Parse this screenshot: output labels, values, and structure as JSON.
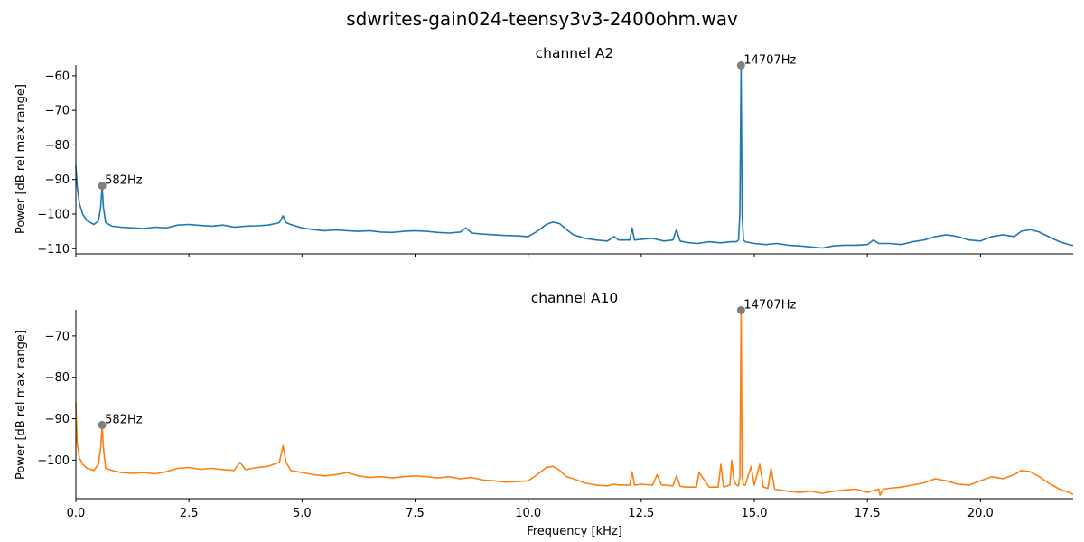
{
  "figure": {
    "title": "sdwrites-gain024-teensy3v3-2400ohm.wav"
  },
  "chart_data": [
    {
      "type": "line",
      "title": "channel A2",
      "xlabel": "",
      "ylabel": "Power [dB rel max range]",
      "xlim": [
        0,
        22.05
      ],
      "ylim": [
        -111.5,
        -56.9
      ],
      "xticks": [
        0.0,
        2.5,
        5.0,
        7.5,
        10.0,
        12.5,
        15.0,
        17.5,
        20.0
      ],
      "xtick_labels_visible": false,
      "yticks": [
        -110,
        -100,
        -90,
        -80,
        -70,
        -60
      ],
      "series": [
        {
          "color": "#1f77b4",
          "x": [
            0.0,
            0.03,
            0.08,
            0.15,
            0.25,
            0.4,
            0.5,
            0.55,
            0.582,
            0.61,
            0.66,
            0.8,
            1.0,
            1.25,
            1.5,
            1.75,
            2.0,
            2.25,
            2.5,
            2.75,
            3.0,
            3.25,
            3.5,
            3.75,
            4.0,
            4.25,
            4.5,
            4.58,
            4.65,
            4.75,
            5.0,
            5.25,
            5.5,
            5.75,
            6.0,
            6.25,
            6.5,
            6.75,
            7.0,
            7.25,
            7.5,
            7.75,
            8.0,
            8.25,
            8.5,
            8.62,
            8.75,
            9.0,
            9.25,
            9.5,
            9.75,
            10.0,
            10.2,
            10.4,
            10.55,
            10.7,
            10.85,
            11.0,
            11.25,
            11.5,
            11.75,
            11.9,
            12.0,
            12.25,
            12.3,
            12.35,
            12.5,
            12.75,
            13.0,
            13.2,
            13.28,
            13.36,
            13.5,
            13.75,
            14.0,
            14.25,
            14.5,
            14.6,
            14.65,
            14.68,
            14.707,
            14.73,
            14.76,
            14.8,
            15.0,
            15.25,
            15.5,
            15.75,
            16.0,
            16.25,
            16.5,
            16.75,
            17.0,
            17.25,
            17.5,
            17.63,
            17.75,
            18.0,
            18.25,
            18.5,
            18.75,
            19.0,
            19.25,
            19.5,
            19.75,
            20.0,
            20.25,
            20.5,
            20.75,
            20.9,
            21.1,
            21.3,
            21.5,
            21.75,
            22.0,
            22.05
          ],
          "y": [
            -86.0,
            -92.0,
            -97.0,
            -100.0,
            -102.0,
            -103.0,
            -102.0,
            -98.0,
            -91.8,
            -98.0,
            -102.5,
            -103.5,
            -103.8,
            -104.0,
            -104.2,
            -103.8,
            -104.0,
            -103.2,
            -103.0,
            -103.3,
            -103.5,
            -103.2,
            -103.8,
            -103.5,
            -103.4,
            -103.2,
            -102.5,
            -100.5,
            -102.5,
            -103.0,
            -104.0,
            -104.5,
            -104.8,
            -104.6,
            -104.8,
            -105.0,
            -104.8,
            -105.2,
            -105.3,
            -105.0,
            -104.8,
            -105.0,
            -105.3,
            -105.5,
            -105.2,
            -104.0,
            -105.5,
            -105.8,
            -106.0,
            -106.2,
            -106.3,
            -106.5,
            -105.0,
            -103.0,
            -102.3,
            -102.8,
            -104.5,
            -106.0,
            -107.0,
            -107.5,
            -107.8,
            -106.5,
            -107.5,
            -107.5,
            -104.0,
            -107.5,
            -107.3,
            -107.0,
            -107.8,
            -107.5,
            -104.5,
            -107.8,
            -108.2,
            -108.5,
            -108.0,
            -108.3,
            -108.0,
            -108.0,
            -107.5,
            -100.0,
            -57.0,
            -100.0,
            -107.5,
            -108.0,
            -108.5,
            -108.8,
            -108.5,
            -109.0,
            -109.2,
            -109.5,
            -109.8,
            -109.2,
            -109.0,
            -109.0,
            -108.8,
            -107.5,
            -108.5,
            -108.5,
            -108.8,
            -108.0,
            -107.5,
            -106.5,
            -106.0,
            -106.5,
            -107.5,
            -107.8,
            -106.5,
            -106.0,
            -106.5,
            -105.0,
            -104.5,
            -105.2,
            -106.5,
            -108.0,
            -109.0,
            -109.0
          ]
        }
      ],
      "annotations": [
        {
          "label": "14707Hz",
          "x": 14.707,
          "y": -57.0
        },
        {
          "label": "582Hz",
          "x": 0.582,
          "y": -91.8
        }
      ]
    },
    {
      "type": "line",
      "title": "channel A10",
      "xlabel": "Frequency [kHz]",
      "ylabel": "Power [dB rel max range]",
      "xlim": [
        0,
        22.05
      ],
      "ylim": [
        -109.3,
        -63.7
      ],
      "xticks": [
        0.0,
        2.5,
        5.0,
        7.5,
        10.0,
        12.5,
        15.0,
        17.5,
        20.0
      ],
      "xtick_labels": [
        "0.0",
        "2.5",
        "5.0",
        "7.5",
        "10.0",
        "12.5",
        "15.0",
        "17.5",
        "20.0"
      ],
      "yticks": [
        -100,
        -90,
        -80,
        -70
      ],
      "series": [
        {
          "color": "#ff7f0e",
          "x": [
            0.0,
            0.03,
            0.08,
            0.15,
            0.25,
            0.4,
            0.5,
            0.55,
            0.582,
            0.61,
            0.66,
            0.8,
            1.0,
            1.25,
            1.5,
            1.75,
            2.0,
            2.25,
            2.5,
            2.75,
            3.0,
            3.25,
            3.5,
            3.63,
            3.75,
            4.0,
            4.25,
            4.5,
            4.58,
            4.65,
            4.75,
            5.0,
            5.25,
            5.5,
            5.75,
            6.0,
            6.25,
            6.5,
            6.75,
            7.0,
            7.25,
            7.5,
            7.75,
            8.0,
            8.25,
            8.5,
            8.75,
            9.0,
            9.25,
            9.5,
            9.75,
            10.0,
            10.2,
            10.4,
            10.55,
            10.7,
            10.85,
            11.0,
            11.25,
            11.5,
            11.75,
            11.9,
            12.0,
            12.25,
            12.3,
            12.35,
            12.5,
            12.75,
            12.85,
            12.95,
            13.0,
            13.2,
            13.28,
            13.36,
            13.5,
            13.72,
            13.78,
            14.0,
            14.2,
            14.26,
            14.32,
            14.46,
            14.5,
            14.55,
            14.6,
            14.65,
            14.68,
            14.707,
            14.73,
            14.76,
            14.8,
            14.93,
            15.0,
            15.12,
            15.2,
            15.3,
            15.37,
            15.45,
            15.75,
            16.0,
            16.25,
            16.5,
            16.75,
            17.0,
            17.25,
            17.5,
            17.75,
            17.78,
            17.85,
            18.0,
            18.25,
            18.5,
            18.75,
            19.0,
            19.25,
            19.5,
            19.75,
            20.0,
            20.25,
            20.5,
            20.75,
            20.9,
            21.1,
            21.3,
            21.5,
            21.75,
            22.0,
            22.05
          ],
          "y": [
            -86.0,
            -96.0,
            -99.5,
            -101.0,
            -102.0,
            -102.5,
            -101.0,
            -97.0,
            -91.5,
            -97.0,
            -102.0,
            -102.5,
            -103.0,
            -103.2,
            -103.0,
            -103.3,
            -102.8,
            -102.0,
            -101.8,
            -102.2,
            -102.0,
            -102.3,
            -102.5,
            -100.5,
            -102.3,
            -101.8,
            -101.5,
            -100.5,
            -96.5,
            -100.5,
            -102.5,
            -103.0,
            -103.5,
            -103.8,
            -103.5,
            -103.0,
            -103.8,
            -104.2,
            -104.0,
            -104.3,
            -104.0,
            -103.8,
            -104.0,
            -104.3,
            -104.0,
            -104.5,
            -104.2,
            -104.8,
            -105.0,
            -105.3,
            -105.2,
            -105.0,
            -103.5,
            -101.8,
            -101.5,
            -102.5,
            -104.0,
            -104.5,
            -105.5,
            -106.0,
            -106.2,
            -105.8,
            -106.0,
            -106.0,
            -102.8,
            -106.0,
            -105.8,
            -106.0,
            -103.5,
            -106.0,
            -106.0,
            -106.2,
            -103.8,
            -106.3,
            -106.5,
            -106.5,
            -103.0,
            -106.5,
            -106.5,
            -101.0,
            -106.5,
            -106.0,
            -100.0,
            -105.0,
            -106.0,
            -106.2,
            -104.0,
            -63.8,
            -104.0,
            -106.0,
            -106.0,
            -101.5,
            -106.0,
            -101.0,
            -106.5,
            -106.8,
            -102.0,
            -107.0,
            -107.5,
            -107.8,
            -107.5,
            -108.0,
            -107.5,
            -107.2,
            -107.0,
            -107.8,
            -107.0,
            -108.5,
            -107.0,
            -106.8,
            -106.5,
            -106.0,
            -105.5,
            -104.5,
            -105.0,
            -105.8,
            -106.0,
            -105.0,
            -104.0,
            -104.5,
            -103.5,
            -102.5,
            -102.8,
            -104.0,
            -105.5,
            -107.0,
            -108.0,
            -108.3
          ]
        }
      ],
      "annotations": [
        {
          "label": "14707Hz",
          "x": 14.707,
          "y": -63.8
        },
        {
          "label": "582Hz",
          "x": 0.582,
          "y": -91.5
        }
      ]
    }
  ]
}
